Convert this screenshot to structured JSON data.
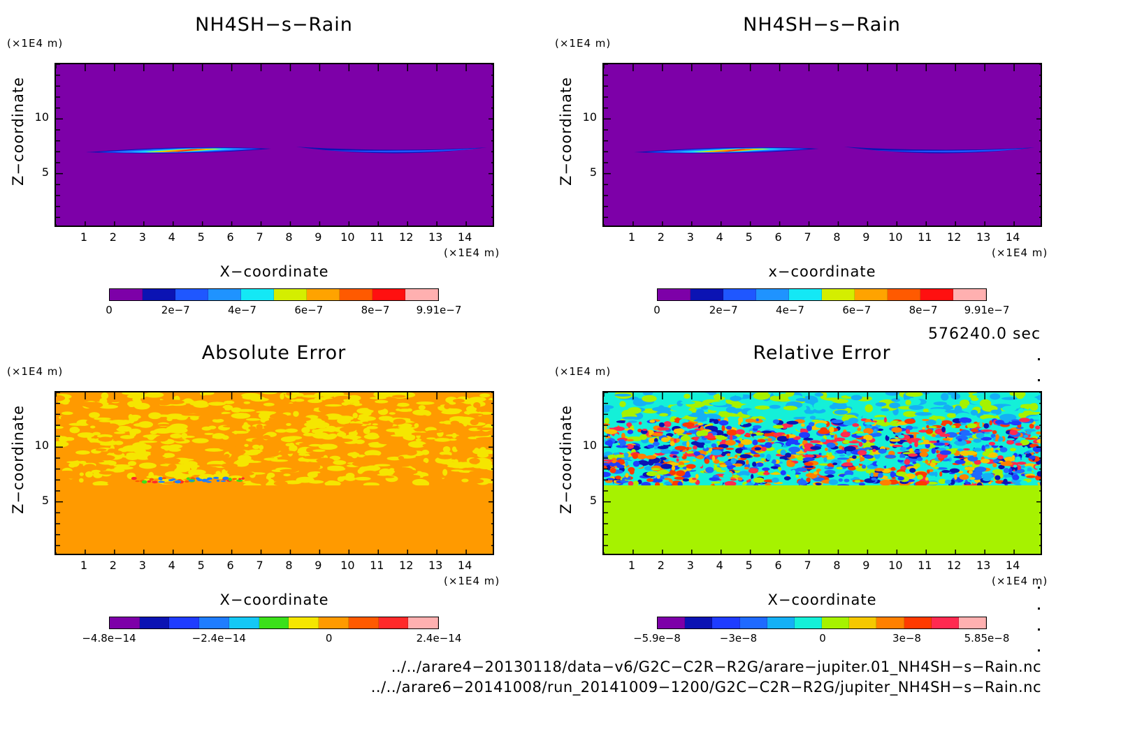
{
  "panels": [
    {
      "title": "NH4SH−s−Rain",
      "ylabel": "Z−coordinate",
      "xlabel": "X−coordinate",
      "yunit": "(×1E4 m)",
      "xunit": "(×1E4 m)",
      "background": "#7d00a8",
      "cb_colors": [
        "#7d00a8",
        "#0b13b3",
        "#1f57ff",
        "#1f93ff",
        "#14e8f5",
        "#d4ee00",
        "#ffa300",
        "#ff5a00",
        "#ff1010",
        "#ffb0b0"
      ],
      "cb_ticks": [
        "0",
        "2e−7",
        "4e−7",
        "6e−7",
        "8e−7",
        "9.91e−7"
      ]
    },
    {
      "title": "NH4SH−s−Rain",
      "ylabel": "Z−coordinate",
      "xlabel": "x−coordinate",
      "yunit": "(×1E4 m)",
      "xunit": "(×1E4 m)",
      "background": "#7d00a8",
      "cb_colors": [
        "#7d00a8",
        "#0b13b3",
        "#1f57ff",
        "#1f93ff",
        "#14e8f5",
        "#d4ee00",
        "#ffa300",
        "#ff5a00",
        "#ff1010",
        "#ffb0b0"
      ],
      "cb_ticks": [
        "0",
        "2e−7",
        "4e−7",
        "6e−7",
        "8e−7",
        "9.91e−7"
      ]
    },
    {
      "title": "Absolute Error",
      "ylabel": "Z−coordinate",
      "xlabel": "X−coordinate",
      "yunit": "(×1E4 m)",
      "xunit": "(×1E4 m)",
      "background": "#ff9a00",
      "cb_colors": [
        "#7d00a8",
        "#0b13b3",
        "#1f3cff",
        "#1f7dff",
        "#14c8f5",
        "#3be01a",
        "#f5e600",
        "#ff9a00",
        "#ff5a00",
        "#ff2a2a",
        "#ffb0b0"
      ],
      "cb_ticks": [
        "−4.8e−14",
        "−2.4e−14",
        "0",
        "2.4e−14"
      ]
    },
    {
      "title": "Relative Error",
      "ylabel": "Z−coordinate",
      "xlabel": "X−coordinate",
      "yunit": "(×1E4 m)",
      "xunit": "(×1E4 m)",
      "background": "#a6f200",
      "cb_colors": [
        "#7d00a8",
        "#0b13b3",
        "#1f3cff",
        "#1f6aff",
        "#14b0f5",
        "#14f0d8",
        "#a6f200",
        "#f5c800",
        "#ff8000",
        "#ff3a00",
        "#ff2a50",
        "#ffb0b0"
      ],
      "cb_ticks": [
        "−5.9e−8",
        "−3e−8",
        "0",
        "3e−8",
        "5.85e−8"
      ]
    }
  ],
  "chart_data": [
    {
      "type": "heatmap",
      "title": "NH4SH−s−Rain",
      "xlabel": "X−coordinate",
      "ylabel": "Z−coordinate",
      "x_unit": "×1E4 m",
      "y_unit": "×1E4 m",
      "xlim": [
        0,
        15
      ],
      "ylim": [
        0,
        15
      ],
      "x_ticks": [
        1,
        2,
        3,
        4,
        5,
        6,
        7,
        8,
        9,
        10,
        11,
        12,
        13,
        14
      ],
      "y_ticks": [
        5,
        10
      ],
      "colorbar": {
        "min": 0,
        "max": 9.91e-07,
        "ticks": [
          0,
          2e-07,
          4e-07,
          6e-07,
          8e-07,
          9.91e-07
        ]
      },
      "features": [
        {
          "x_range": [
            0.8,
            7.1
          ],
          "z_range": [
            6.7,
            7.6
          ],
          "peak_value": 9e-07,
          "peak_x": 4.5
        },
        {
          "x_range": [
            8.2,
            14.7
          ],
          "z_range": [
            6.8,
            7.6
          ],
          "peak_value": 3e-07
        }
      ]
    },
    {
      "type": "heatmap",
      "title": "NH4SH−s−Rain",
      "xlabel": "x−coordinate",
      "ylabel": "Z−coordinate",
      "x_unit": "×1E4 m",
      "y_unit": "×1E4 m",
      "xlim": [
        0,
        15
      ],
      "ylim": [
        0,
        15
      ],
      "x_ticks": [
        1,
        2,
        3,
        4,
        5,
        6,
        7,
        8,
        9,
        10,
        11,
        12,
        13,
        14
      ],
      "y_ticks": [
        5,
        10
      ],
      "colorbar": {
        "min": 0,
        "max": 9.91e-07,
        "ticks": [
          0,
          2e-07,
          4e-07,
          6e-07,
          8e-07,
          9.91e-07
        ]
      },
      "features": [
        {
          "x_range": [
            0.8,
            7.1
          ],
          "z_range": [
            6.7,
            7.6
          ],
          "peak_value": 9e-07,
          "peak_x": 4.5
        },
        {
          "x_range": [
            8.2,
            14.7
          ],
          "z_range": [
            6.8,
            7.6
          ],
          "peak_value": 3e-07
        }
      ]
    },
    {
      "type": "heatmap",
      "title": "Absolute Error",
      "xlabel": "X−coordinate",
      "ylabel": "Z−coordinate",
      "x_unit": "×1E4 m",
      "y_unit": "×1E4 m",
      "xlim": [
        0,
        15
      ],
      "ylim": [
        0,
        15
      ],
      "x_ticks": [
        1,
        2,
        3,
        4,
        5,
        6,
        7,
        8,
        9,
        10,
        11,
        12,
        13,
        14
      ],
      "y_ticks": [
        5,
        10
      ],
      "colorbar": {
        "min": -4.8e-14,
        "max": 2.4e-14,
        "ticks": [
          -4.8e-14,
          -2.4e-14,
          0,
          2.4e-14
        ]
      },
      "features": [
        {
          "z_range": [
            6.5,
            15
          ],
          "pattern": "noise",
          "value_levels": [
            0,
            1e-15
          ]
        },
        {
          "z_range": [
            0,
            6.5
          ],
          "value": 0
        }
      ]
    },
    {
      "type": "heatmap",
      "title": "Relative Error",
      "xlabel": "X−coordinate",
      "ylabel": "Z−coordinate",
      "x_unit": "×1E4 m",
      "y_unit": "×1E4 m",
      "xlim": [
        0,
        15
      ],
      "ylim": [
        0,
        15
      ],
      "x_ticks": [
        1,
        2,
        3,
        4,
        5,
        6,
        7,
        8,
        9,
        10,
        11,
        12,
        13,
        14
      ],
      "y_ticks": [
        5,
        10
      ],
      "colorbar": {
        "min": -5.9e-08,
        "max": 5.85e-08,
        "ticks": [
          -5.9e-08,
          -3e-08,
          0,
          3e-08,
          5.85e-08
        ]
      },
      "features": [
        {
          "z_range": [
            6.5,
            12.5
          ],
          "pattern": "noise",
          "value_range": [
            -5.9e-08,
            5.85e-08
          ]
        },
        {
          "z_range": [
            12.5,
            15
          ],
          "pattern": "noise",
          "value_range": [
            -1e-08,
            1e-08
          ]
        },
        {
          "z_range": [
            0,
            6.5
          ],
          "value": 0
        }
      ]
    }
  ],
  "x_tick_labels": [
    "1",
    "2",
    "3",
    "4",
    "5",
    "6",
    "7",
    "8",
    "9",
    "10",
    "11",
    "12",
    "13",
    "14"
  ],
  "y_tick_labels": [
    "5",
    "10"
  ],
  "time_label": "576240.0 sec",
  "files": [
    "../../arare4−20130118/data−v6/G2C−C2R−R2G/arare−jupiter.01_NH4SH−s−Rain.nc",
    "../../arare6−20141008/run_20141009−1200/G2C−C2R−R2G/jupiter_NH4SH−s−Rain.nc"
  ]
}
